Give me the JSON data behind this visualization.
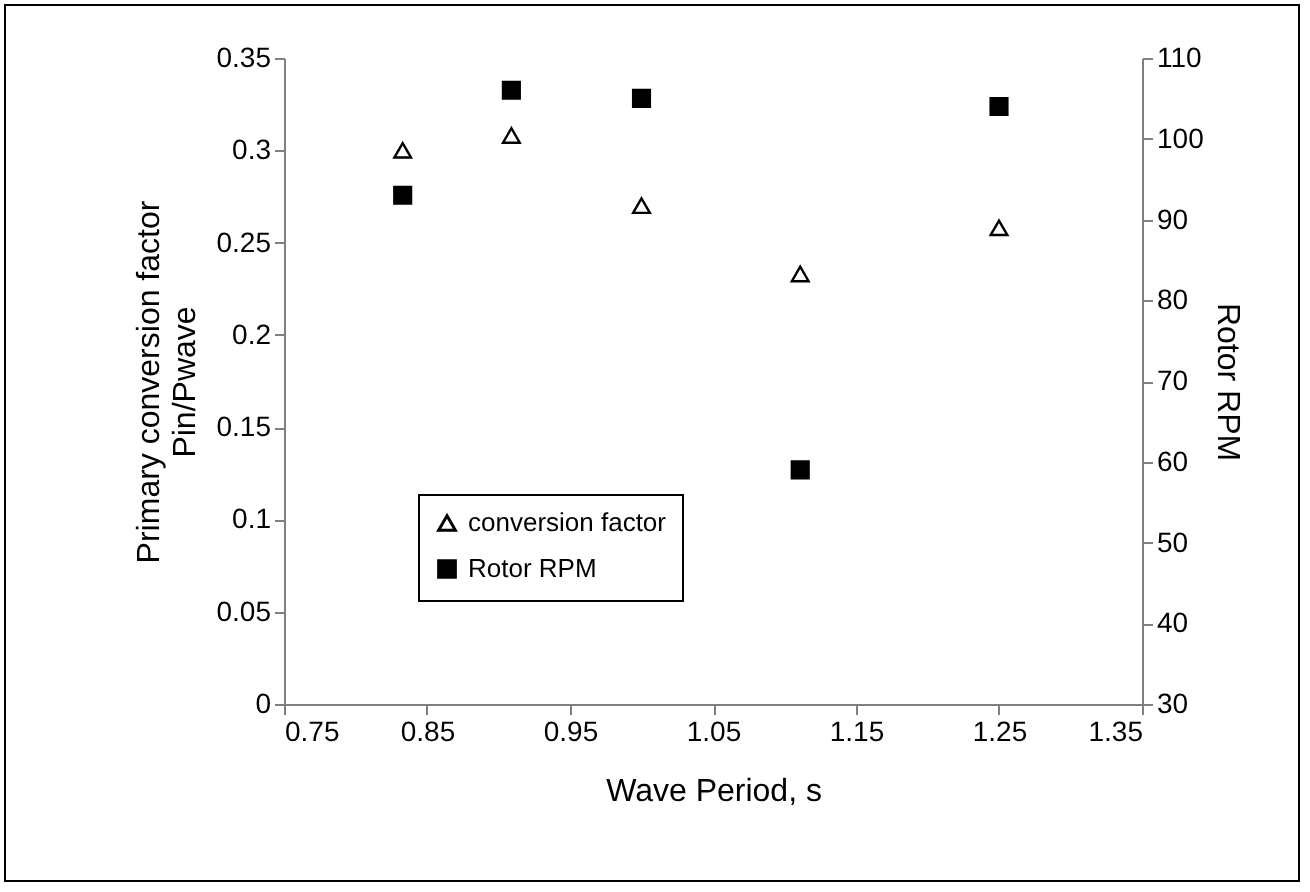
{
  "chart_data": {
    "type": "scatter",
    "xlabel": "Wave Period, s",
    "ylabel": "Primary conversion factor\nPin/Pwave",
    "y2label": "Rotor RPM",
    "x": [
      0.833,
      0.909,
      1.0,
      1.111,
      1.25
    ],
    "series": [
      {
        "name": "conversion factor",
        "color": "#000000",
        "marker": "triangle",
        "values": [
          0.3,
          0.308,
          0.27,
          0.233,
          0.258
        ]
      },
      {
        "name": "Rotor RPM",
        "color": "#000000",
        "marker": "square",
        "axis": "y2",
        "values": [
          93,
          106,
          105,
          59,
          104
        ]
      }
    ],
    "xlim": [
      0.75,
      1.35
    ],
    "xticks": [
      0.75,
      0.85,
      0.95,
      1.05,
      1.15,
      1.25,
      1.35
    ],
    "ylim": [
      0,
      0.35
    ],
    "yticks": [
      0,
      0.05,
      0.1,
      0.15,
      0.2,
      0.25,
      0.3,
      0.35
    ],
    "y2lim": [
      30,
      110
    ],
    "y2ticks": [
      30,
      40,
      50,
      60,
      70,
      80,
      90,
      100,
      110
    ],
    "legend": "left",
    "grid": false
  }
}
